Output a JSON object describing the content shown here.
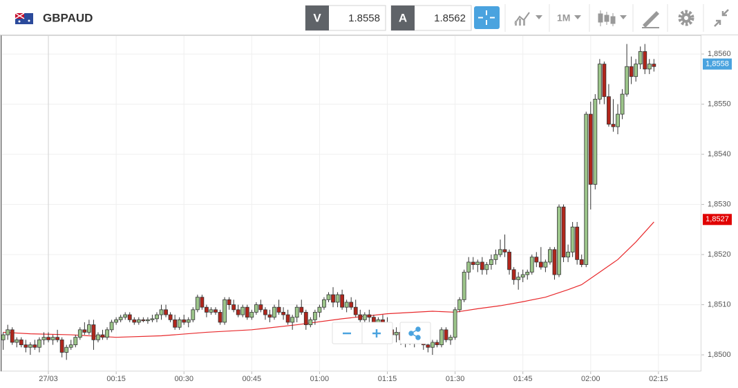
{
  "toolbar": {
    "symbol": "GBPAUD",
    "bid_label": "V",
    "bid": 1.8558,
    "ask_label": "A",
    "ask": 1.8562,
    "timeframe": "1M"
  },
  "chart_data": {
    "type": "candlestick",
    "x": [
      -10,
      -9,
      -8,
      -7,
      -6,
      -5,
      -4,
      -3,
      -2,
      -1,
      0,
      1,
      2,
      3,
      4,
      5,
      6,
      7,
      8,
      9,
      10,
      11,
      12,
      13,
      14,
      15,
      16,
      17,
      18,
      19,
      20,
      21,
      22,
      23,
      24,
      25,
      26,
      27,
      28,
      29,
      30,
      31,
      32,
      33,
      34,
      35,
      36,
      37,
      38,
      39,
      40,
      41,
      42,
      43,
      44,
      45,
      46,
      47,
      48,
      49,
      50,
      51,
      52,
      53,
      54,
      55,
      56,
      57,
      58,
      59,
      60,
      61,
      62,
      63,
      64,
      65,
      66,
      67,
      68,
      69,
      70,
      71,
      72,
      73,
      74,
      75,
      76,
      77,
      78,
      79,
      80,
      81,
      82,
      83,
      84,
      85,
      86,
      87,
      88,
      89,
      90,
      91,
      92,
      93,
      94,
      95,
      96,
      97,
      98,
      99,
      100,
      101,
      102,
      103,
      104,
      105,
      106,
      107,
      108,
      109,
      110,
      111,
      112,
      113,
      114,
      115,
      116,
      117,
      118,
      119,
      120,
      121,
      122,
      123,
      124,
      125,
      126,
      127,
      128,
      129,
      130,
      131,
      132,
      133,
      134
    ],
    "open": [
      1.8503,
      1.8504,
      1.8505,
      1.85025,
      1.8503,
      1.8502,
      1.85015,
      1.8502,
      1.85015,
      1.8503,
      1.85035,
      1.8503,
      1.85035,
      1.8503,
      1.85005,
      1.85015,
      1.8502,
      1.85035,
      1.8505,
      1.85045,
      1.8506,
      1.8503,
      1.8504,
      1.85035,
      1.8505,
      1.85065,
      1.8507,
      1.85075,
      1.8508,
      1.8507,
      1.85065,
      1.8507,
      1.85068,
      1.8507,
      1.85072,
      1.8508,
      1.8509,
      1.8508,
      1.8507,
      1.85055,
      1.8507,
      1.85065,
      1.8507,
      1.8509,
      1.85115,
      1.85095,
      1.85085,
      1.8509,
      1.85085,
      1.85065,
      1.8511,
      1.851,
      1.8509,
      1.8508,
      1.85095,
      1.85075,
      1.85085,
      1.851,
      1.8509,
      1.8508,
      1.85075,
      1.85095,
      1.85085,
      1.8508,
      1.85065,
      1.85075,
      1.85095,
      1.85085,
      1.8506,
      1.8507,
      1.85085,
      1.85095,
      1.8511,
      1.8512,
      1.85105,
      1.8512,
      1.85095,
      1.85105,
      1.85095,
      1.8508,
      1.8507,
      1.8508,
      1.85075,
      1.85055,
      1.8507,
      1.8506,
      1.8505,
      1.8504,
      1.85045,
      1.8503,
      1.85035,
      1.85025,
      1.8504,
      1.85035,
      1.8502,
      1.85015,
      1.85025,
      1.8502,
      1.8505,
      1.8503,
      1.85035,
      1.8509,
      1.8511,
      1.85165,
      1.85185,
      1.8518,
      1.85185,
      1.8517,
      1.8518,
      1.8519,
      1.852,
      1.8521,
      1.85205,
      1.8517,
      1.8515,
      1.85155,
      1.8516,
      1.85165,
      1.85195,
      1.85185,
      1.85175,
      1.85185,
      1.8521,
      1.8516,
      1.85295,
      1.85195,
      1.85205,
      1.85255,
      1.8519,
      1.8518,
      1.8548,
      1.8534,
      1.8551,
      1.8558,
      1.85515,
      1.8546,
      1.85455,
      1.8548,
      1.8552,
      1.85575,
      1.85555,
      1.8558,
      1.85605,
      1.8557,
      1.8558
    ],
    "high": [
      1.85045,
      1.8506,
      1.85055,
      1.85035,
      1.85035,
      1.8503,
      1.85025,
      1.8503,
      1.85035,
      1.85045,
      1.85045,
      1.8504,
      1.8505,
      1.85035,
      1.8502,
      1.8503,
      1.8504,
      1.85055,
      1.85065,
      1.8507,
      1.8507,
      1.85045,
      1.8505,
      1.85055,
      1.8507,
      1.85075,
      1.8508,
      1.85085,
      1.85085,
      1.85075,
      1.85075,
      1.85075,
      1.85075,
      1.8508,
      1.85085,
      1.851,
      1.851,
      1.85085,
      1.8508,
      1.85075,
      1.8508,
      1.85075,
      1.85095,
      1.8512,
      1.8512,
      1.851,
      1.85095,
      1.85095,
      1.8509,
      1.85115,
      1.85115,
      1.8511,
      1.851,
      1.851,
      1.851,
      1.8509,
      1.85105,
      1.8511,
      1.85095,
      1.8509,
      1.851,
      1.8511,
      1.85095,
      1.8509,
      1.8508,
      1.851,
      1.8511,
      1.8509,
      1.85075,
      1.8509,
      1.851,
      1.85115,
      1.85125,
      1.85135,
      1.85125,
      1.8513,
      1.8511,
      1.85115,
      1.8511,
      1.8509,
      1.85085,
      1.8509,
      1.8508,
      1.85075,
      1.8508,
      1.85075,
      1.8506,
      1.85055,
      1.8505,
      1.8504,
      1.85045,
      1.85045,
      1.85055,
      1.8504,
      1.8503,
      1.8503,
      1.8503,
      1.85055,
      1.85055,
      1.8504,
      1.85095,
      1.85115,
      1.8517,
      1.85195,
      1.85195,
      1.8519,
      1.85195,
      1.85185,
      1.852,
      1.8521,
      1.8523,
      1.8524,
      1.8521,
      1.85175,
      1.85165,
      1.8517,
      1.8517,
      1.852,
      1.85205,
      1.85215,
      1.8519,
      1.85215,
      1.85215,
      1.853,
      1.853,
      1.8522,
      1.85265,
      1.85265,
      1.852,
      1.85485,
      1.85505,
      1.8552,
      1.8559,
      1.85585,
      1.8554,
      1.8551,
      1.855,
      1.8553,
      1.8562,
      1.85595,
      1.8559,
      1.85615,
      1.8562,
      1.8559,
      1.8559
    ],
    "low": [
      1.8501,
      1.8503,
      1.8502,
      1.85015,
      1.85015,
      1.85005,
      1.85,
      1.8501,
      1.85005,
      1.8502,
      1.85025,
      1.8502,
      1.85025,
      1.84995,
      1.8499,
      1.8501,
      1.85015,
      1.8503,
      1.8504,
      1.8504,
      1.8501,
      1.85025,
      1.8503,
      1.8503,
      1.85045,
      1.8506,
      1.85065,
      1.8507,
      1.85065,
      1.8506,
      1.8506,
      1.85065,
      1.85062,
      1.85065,
      1.85065,
      1.8507,
      1.85075,
      1.85065,
      1.8505,
      1.8505,
      1.8506,
      1.85055,
      1.85065,
      1.85085,
      1.8509,
      1.85075,
      1.8508,
      1.8508,
      1.8506,
      1.8506,
      1.8509,
      1.85085,
      1.85075,
      1.85075,
      1.8507,
      1.8507,
      1.8508,
      1.85085,
      1.8507,
      1.85065,
      1.8507,
      1.8508,
      1.8507,
      1.8506,
      1.8505,
      1.85065,
      1.8508,
      1.8505,
      1.85055,
      1.8506,
      1.85075,
      1.8509,
      1.85105,
      1.85095,
      1.85095,
      1.8509,
      1.85085,
      1.8509,
      1.85075,
      1.8506,
      1.8506,
      1.85065,
      1.85045,
      1.8505,
      1.85055,
      1.85045,
      1.8503,
      1.85025,
      1.8502,
      1.85015,
      1.8502,
      1.85015,
      1.8503,
      1.8501,
      1.85005,
      1.85,
      1.85015,
      1.85015,
      1.85025,
      1.8502,
      1.8503,
      1.85085,
      1.85105,
      1.8515,
      1.8517,
      1.85165,
      1.8516,
      1.8516,
      1.8517,
      1.8518,
      1.85195,
      1.85195,
      1.8516,
      1.8514,
      1.8513,
      1.85145,
      1.8515,
      1.8516,
      1.85175,
      1.8517,
      1.85165,
      1.8518,
      1.8515,
      1.85155,
      1.85185,
      1.85185,
      1.85195,
      1.8518,
      1.85175,
      1.85175,
      1.8529,
      1.8533,
      1.855,
      1.855,
      1.85455,
      1.85445,
      1.8544,
      1.8547,
      1.85515,
      1.8554,
      1.85545,
      1.8557,
      1.8556,
      1.8556,
      1.85565
    ],
    "close": [
      1.8504,
      1.8505,
      1.85025,
      1.8503,
      1.8502,
      1.85015,
      1.8502,
      1.85015,
      1.8503,
      1.85035,
      1.8503,
      1.85035,
      1.8503,
      1.85005,
      1.85015,
      1.8502,
      1.85035,
      1.8505,
      1.85045,
      1.8506,
      1.8503,
      1.8504,
      1.85035,
      1.8505,
      1.85065,
      1.8507,
      1.85075,
      1.8508,
      1.8507,
      1.85065,
      1.8507,
      1.85068,
      1.8507,
      1.85072,
      1.8508,
      1.8509,
      1.8508,
      1.8507,
      1.85055,
      1.8507,
      1.85065,
      1.8507,
      1.8509,
      1.85115,
      1.85095,
      1.85085,
      1.8509,
      1.85085,
      1.85065,
      1.8511,
      1.851,
      1.8509,
      1.8508,
      1.85095,
      1.85075,
      1.85085,
      1.851,
      1.8509,
      1.8508,
      1.85075,
      1.85095,
      1.85085,
      1.8508,
      1.85065,
      1.85075,
      1.85095,
      1.85085,
      1.8506,
      1.8507,
      1.85085,
      1.85095,
      1.8511,
      1.8512,
      1.85105,
      1.8512,
      1.85095,
      1.85105,
      1.85095,
      1.8508,
      1.8507,
      1.8508,
      1.85075,
      1.85055,
      1.8507,
      1.8506,
      1.8505,
      1.8504,
      1.85045,
      1.8503,
      1.85035,
      1.85025,
      1.8504,
      1.85035,
      1.8502,
      1.85015,
      1.85025,
      1.8502,
      1.8505,
      1.8503,
      1.85035,
      1.8509,
      1.8511,
      1.85165,
      1.85185,
      1.8518,
      1.85185,
      1.8517,
      1.8518,
      1.8519,
      1.852,
      1.8521,
      1.85205,
      1.8517,
      1.8515,
      1.85155,
      1.8516,
      1.85165,
      1.85195,
      1.85185,
      1.85175,
      1.85185,
      1.8521,
      1.8516,
      1.85295,
      1.85195,
      1.85205,
      1.85255,
      1.8519,
      1.8518,
      1.8548,
      1.8534,
      1.8551,
      1.8558,
      1.85515,
      1.8546,
      1.85455,
      1.8548,
      1.8552,
      1.85575,
      1.85555,
      1.8558,
      1.85605,
      1.8557,
      1.8558,
      1.85575
    ],
    "up_color": "#9cc58a",
    "down_color": "#b0261c",
    "ma": {
      "x": [
        -10,
        -4,
        5,
        15,
        25,
        35,
        45,
        55,
        65,
        75,
        85,
        90,
        95,
        100,
        105,
        110,
        115,
        118,
        122,
        126,
        130,
        134
      ],
      "values": [
        1.85045,
        1.85042,
        1.8504,
        1.85035,
        1.85038,
        1.85045,
        1.8505,
        1.8506,
        1.85072,
        1.85082,
        1.85087,
        1.85085,
        1.85092,
        1.85098,
        1.85106,
        1.85115,
        1.8513,
        1.8514,
        1.85165,
        1.8519,
        1.85225,
        1.85265
      ],
      "color": "#e8282b"
    },
    "price_tag": {
      "value": 1.8558,
      "label": "1,8558",
      "color": "#4aa3df"
    },
    "ma_tag": {
      "value": 1.8527,
      "label": "1,8527",
      "color": "#e00000"
    },
    "xlim": [
      -10.25,
      144.5
    ],
    "ylim": [
      1.84967,
      1.85636
    ],
    "xticks": [
      {
        "value": 0,
        "label": "27/03"
      },
      {
        "value": 15,
        "label": "00:15"
      },
      {
        "value": 30,
        "label": "00:30"
      },
      {
        "value": 45,
        "label": "00:45"
      },
      {
        "value": 60,
        "label": "01:00"
      },
      {
        "value": 75,
        "label": "01:15"
      },
      {
        "value": 90,
        "label": "01:30"
      },
      {
        "value": 105,
        "label": "01:45"
      },
      {
        "value": 120,
        "label": "02:00"
      },
      {
        "value": 135,
        "label": "02:15"
      }
    ],
    "yticks": [
      {
        "value": 1.85,
        "label": "1,8500"
      },
      {
        "value": 1.851,
        "label": "1,8510"
      },
      {
        "value": 1.852,
        "label": "1,8520"
      },
      {
        "value": 1.853,
        "label": "1,8530"
      },
      {
        "value": 1.854,
        "label": "1,8540"
      },
      {
        "value": 1.855,
        "label": "1,8550"
      },
      {
        "value": 1.856,
        "label": "1,8560"
      }
    ],
    "grid": true
  }
}
